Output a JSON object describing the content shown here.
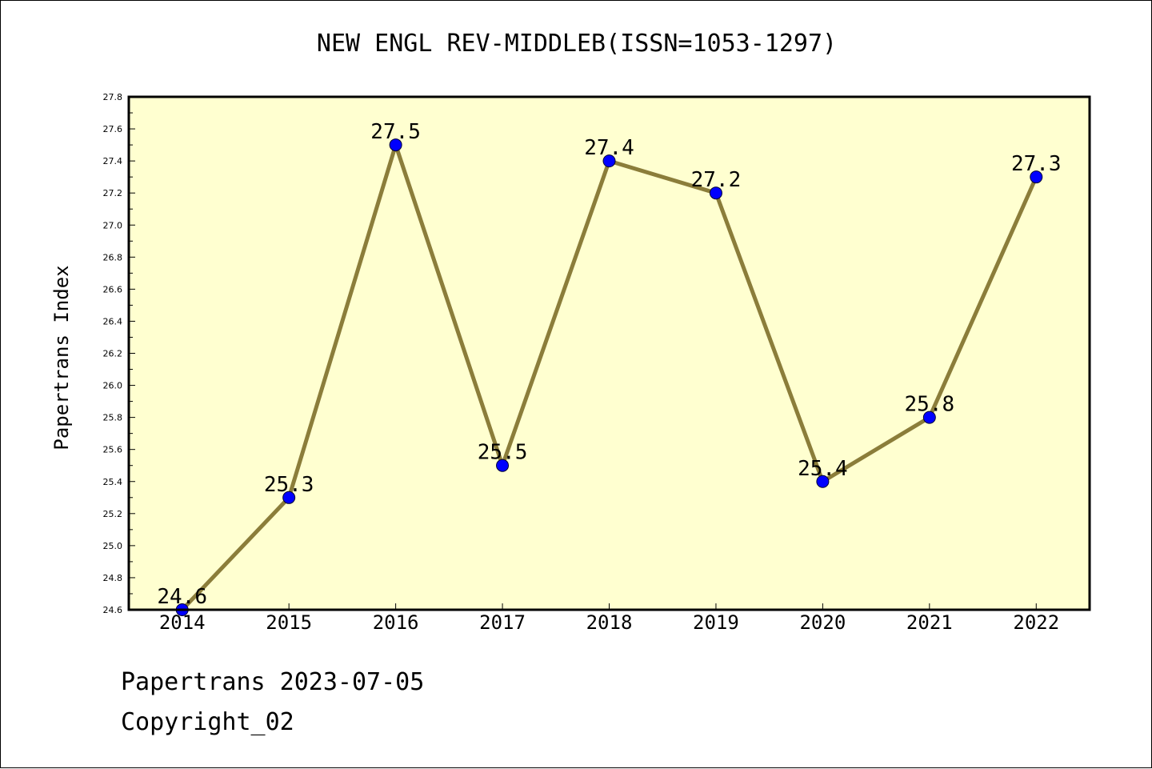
{
  "chart_data": {
    "type": "line",
    "title": "NEW ENGL REV-MIDDLEB(ISSN=1053-1297)",
    "xlabel": "",
    "ylabel": "Papertrans Index",
    "categories": [
      "2014",
      "2015",
      "2016",
      "2017",
      "2018",
      "2019",
      "2020",
      "2021",
      "2022"
    ],
    "series": [
      {
        "values": [
          24.6,
          25.3,
          27.5,
          25.5,
          27.4,
          27.2,
          25.4,
          25.8,
          27.3
        ]
      }
    ],
    "data_labels": [
      "24.6",
      "25.3",
      "27.5",
      "25.5",
      "27.4",
      "27.2",
      "25.4",
      "25.8",
      "27.3"
    ],
    "ylim": [
      24.6,
      27.8
    ],
    "y_ticks": [
      "24.6",
      "24.8",
      "25.0",
      "25.2",
      "25.4",
      "25.6",
      "25.8",
      "26.0",
      "26.2",
      "26.4",
      "26.6",
      "26.8",
      "27.0",
      "27.2",
      "27.4",
      "27.6",
      "27.8"
    ],
    "grid": false,
    "colors": {
      "plot_background": "#ffffd0",
      "line": "#8b7d3a",
      "marker": "#0000ff"
    }
  },
  "footer": {
    "line1": "Papertrans 2023-07-05",
    "line2": "Copyright_02"
  }
}
